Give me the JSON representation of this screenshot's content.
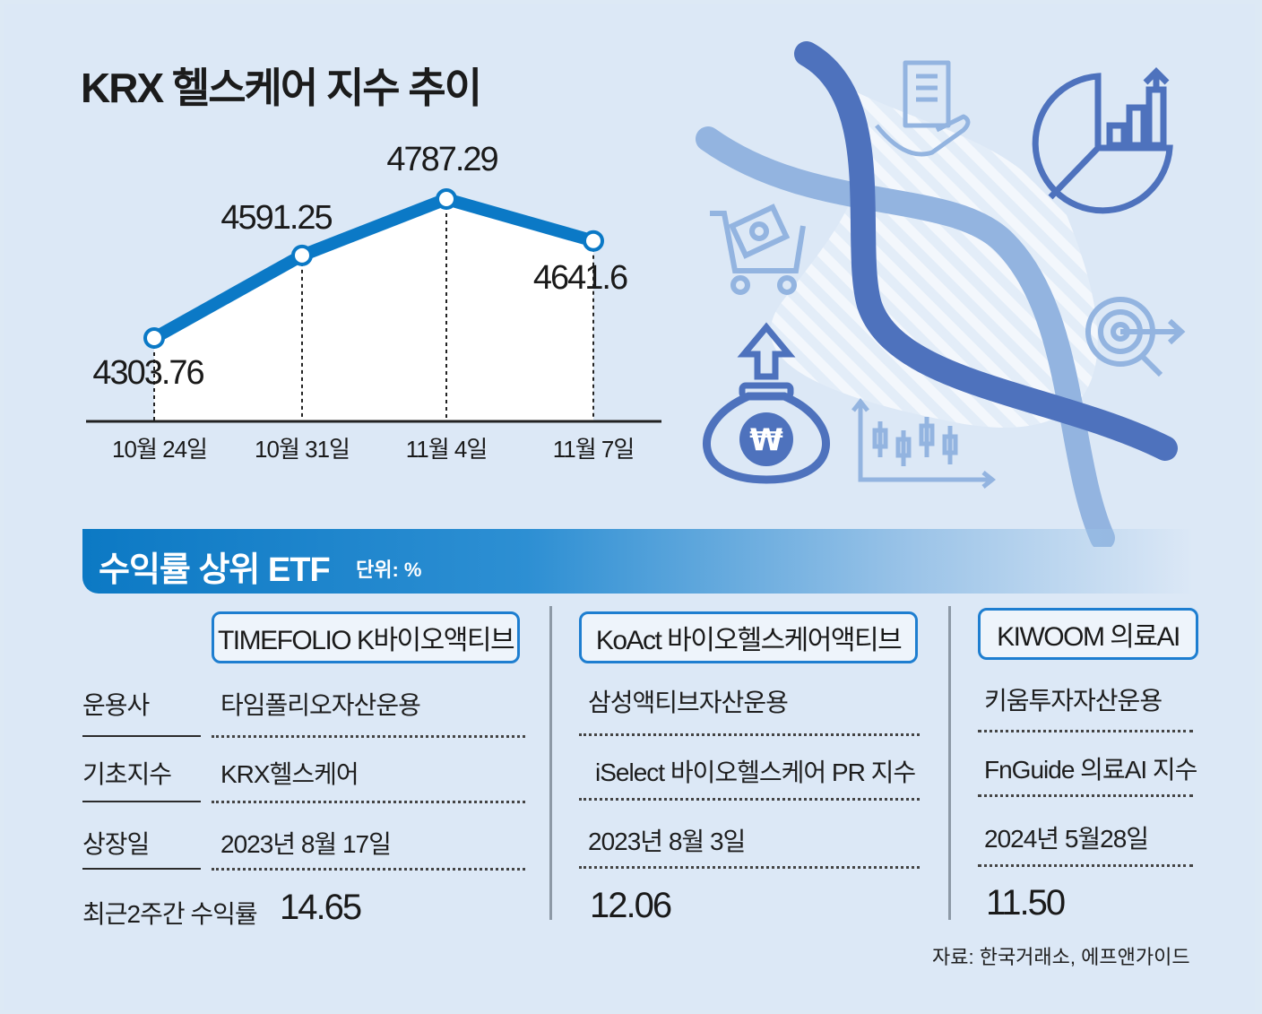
{
  "chart_data": {
    "type": "line",
    "title": "KRX 헬스케어 지수 추이",
    "categories": [
      "10월 24일",
      "10월 31일",
      "11월 4일",
      "11월 7일"
    ],
    "values": [
      4303.76,
      4591.25,
      4787.29,
      4641.6
    ],
    "value_labels": [
      "4303.76",
      "4591.25",
      "4787.29",
      "4641.6"
    ],
    "grid": false,
    "line_color": "#0b79c6",
    "fill_color": "#ffffff"
  },
  "etf_section": {
    "title": "수익률 상위 ETF",
    "unit": "단위: %",
    "row_labels": {
      "manager": "운용사",
      "base_index": "기초지수",
      "listing_date": "상장일",
      "return_2w": "최근2주간 수익률"
    },
    "etfs": [
      {
        "name": "TIMEFOLIO K바이오액티브",
        "manager": "타임폴리오자산운용",
        "base_index": "KRX헬스케어",
        "listing_date": "2023년 8월 17일",
        "return_2w": "14.65"
      },
      {
        "name": "KoAct 바이오헬스케어액티브",
        "manager": "삼성액티브자산운용",
        "base_index": "iSelect 바이오헬스케어 PR 지수",
        "listing_date": "2023년 8월 3일",
        "return_2w": "12.06"
      },
      {
        "name": "KIWOOM 의료AI",
        "manager": "키움투자자산운용",
        "base_index": "FnGuide 의료AI 지수",
        "listing_date": "2024년 5월28일",
        "return_2w": "11.50"
      }
    ]
  },
  "source": "자료: 한국거래소, 에프앤가이드",
  "colors": {
    "background": "#dce8f6",
    "accent": "#0b79c6",
    "helix_dark": "#4e72bd",
    "helix_light": "#93b4e0"
  },
  "icons": [
    "dna-helix-icon",
    "building-hand-icon",
    "pie-chart-growth-icon",
    "shopping-cart-money-icon",
    "target-search-icon",
    "money-bag-won-icon",
    "candlestick-chart-icon"
  ]
}
